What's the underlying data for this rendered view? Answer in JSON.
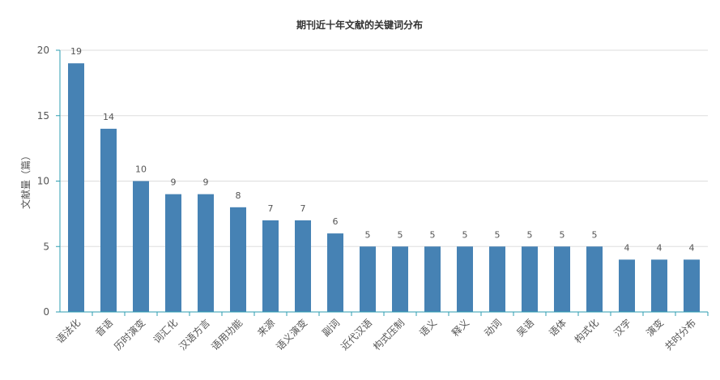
{
  "chart_data": {
    "type": "bar",
    "title": "期刊近十年文献的关键词分布",
    "xlabel": "",
    "ylabel": "文献量（篇）",
    "ylim": [
      0,
      20
    ],
    "yticks": [
      0,
      5,
      10,
      15,
      20
    ],
    "grid": true,
    "legend": "none",
    "bar_color": "#4682B4",
    "axis_color": "#2E9EB0",
    "categories": [
      "语法化",
      "音语",
      "历时演变",
      "词汇化",
      "汉语方言",
      "语用功能",
      "来源",
      "语义演变",
      "副词",
      "近代汉语",
      "构式压制",
      "语义",
      "释义",
      "动词",
      "吴语",
      "语体",
      "构式化",
      "汉字",
      "演变",
      "共时分布"
    ],
    "values": [
      19,
      14,
      10,
      9,
      9,
      8,
      7,
      7,
      6,
      5,
      5,
      5,
      5,
      5,
      5,
      5,
      5,
      4,
      4,
      4
    ]
  }
}
